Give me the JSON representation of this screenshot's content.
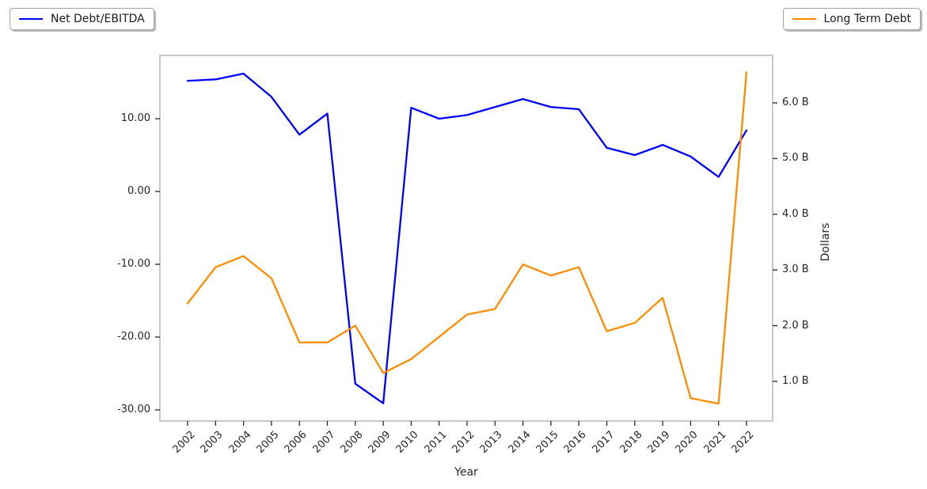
{
  "legend_left": {
    "label": "Net Debt/EBITDA",
    "color": "#0000ff"
  },
  "legend_right": {
    "label": "Long Term Debt",
    "color": "#ff8c00"
  },
  "axes": {
    "x_label": "Year",
    "right_y_label": "Dollars",
    "left_ticks": {
      "labels": [
        "10.00",
        "0.00",
        "-10.00",
        "-20.00",
        "-30.00"
      ],
      "values": [
        10,
        0,
        -10,
        -20,
        -30
      ]
    },
    "right_ticks": {
      "labels": [
        "6.0 B",
        "5.0 B",
        "4.0 B",
        "3.0 B",
        "2.0 B",
        "1.0 B"
      ],
      "values": [
        6,
        5,
        4,
        3,
        2,
        1
      ]
    }
  },
  "chart_data": {
    "type": "line",
    "x": [
      2002,
      2003,
      2004,
      2005,
      2006,
      2007,
      2008,
      2009,
      2010,
      2011,
      2012,
      2013,
      2014,
      2015,
      2016,
      2017,
      2018,
      2019,
      2020,
      2021,
      2022
    ],
    "xlabel": "Year",
    "right_ylabel": "Dollars",
    "left_ylim": [
      -31.5,
      18.7
    ],
    "right_ylim_billions": [
      0.29,
      6.85
    ],
    "grid": false,
    "legend_positions": [
      "upper left (outside, figure top-left)",
      "upper right (outside, figure top-right)"
    ],
    "series": [
      {
        "name": "Net Debt/EBITDA",
        "axis": "left",
        "color": "#0000ff",
        "values": [
          15.2,
          15.4,
          16.2,
          13.0,
          7.8,
          10.7,
          -26.4,
          -29.1,
          11.5,
          10.0,
          10.5,
          11.6,
          12.7,
          11.6,
          11.3,
          6.0,
          5.0,
          6.4,
          4.8,
          2.0,
          8.4
        ]
      },
      {
        "name": "Long Term Debt",
        "axis": "right",
        "unit": "billions of dollars",
        "color": "#ff8c00",
        "values": [
          2.4,
          3.05,
          3.25,
          2.85,
          1.7,
          1.7,
          2.0,
          1.15,
          1.4,
          1.8,
          2.2,
          2.3,
          3.1,
          2.9,
          3.05,
          1.9,
          2.05,
          2.5,
          0.7,
          0.6,
          6.55
        ]
      }
    ]
  }
}
